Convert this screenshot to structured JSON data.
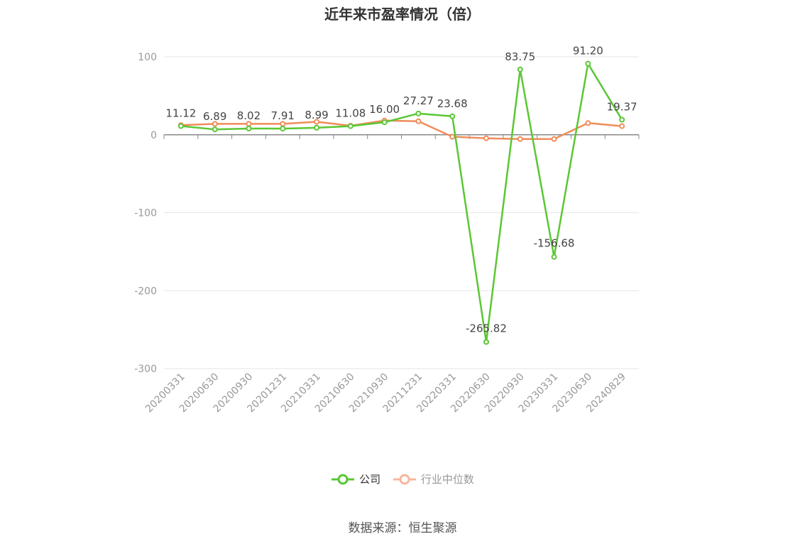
{
  "chart_data": {
    "type": "line",
    "title": "近年来市盈率情况（倍）",
    "categories": [
      "20200331",
      "20200630",
      "20200930",
      "20201231",
      "20210331",
      "20210630",
      "20210930",
      "20211231",
      "20220331",
      "20220630",
      "20220930",
      "20230331",
      "20230630",
      "20240829"
    ],
    "series": [
      {
        "name": "公司",
        "color": "#5ac734",
        "values": [
          11.12,
          6.89,
          8.02,
          7.91,
          8.99,
          11.08,
          16.0,
          27.27,
          23.68,
          -265.82,
          83.75,
          -156.68,
          91.2,
          19.37
        ],
        "labels": [
          "11.12",
          "6.89",
          "8.02",
          "7.91",
          "8.99",
          "11.08",
          "16.00",
          "27.27",
          "23.68",
          "-265.82",
          "83.75",
          "-156.68",
          "91.20",
          "19.37"
        ]
      },
      {
        "name": "行业中位数",
        "color": "#f08c5a",
        "values": [
          12.3,
          14.0,
          14.0,
          14.0,
          16.6,
          11.6,
          18.2,
          17.3,
          -2.5,
          -4.5,
          -5.5,
          -5.5,
          15.0,
          11.1
        ]
      }
    ],
    "yticks": [
      100,
      0,
      -100,
      -200,
      -300
    ],
    "ylim": [
      -300,
      100
    ],
    "legend_position": "bottom",
    "grid": true
  },
  "legend": {
    "company": "公司",
    "industry": "行业中位数"
  },
  "source": "数据来源：恒生聚源"
}
